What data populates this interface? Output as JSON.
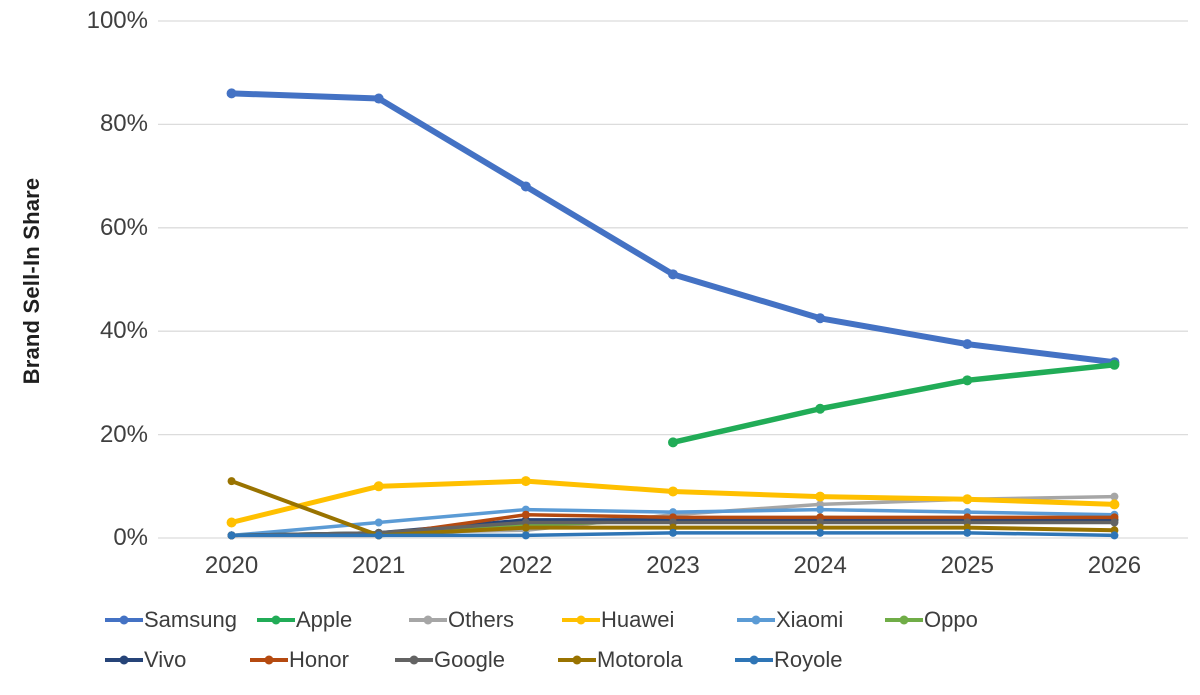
{
  "chart_data": {
    "type": "line",
    "title": "",
    "ylabel": "Brand Sell-In Share",
    "xlabel": "",
    "categories": [
      "2020",
      "2021",
      "2022",
      "2023",
      "2024",
      "2025",
      "2026"
    ],
    "ytick_labels": [
      "100%",
      "80%",
      "60%",
      "40%",
      "20%",
      "0%"
    ],
    "ytick_values": [
      100,
      80,
      60,
      40,
      20,
      0
    ],
    "ylim": [
      0,
      100
    ],
    "grid": "horizontal",
    "legend_position": "bottom",
    "series": [
      {
        "name": "Samsung",
        "color": "#4472C4",
        "line_width": 6,
        "marker": "circle",
        "values": [
          86,
          85,
          68,
          51,
          42.5,
          37.5,
          34
        ]
      },
      {
        "name": "Apple",
        "color": "#21AC57",
        "line_width": 5.5,
        "marker": "circle",
        "values": [
          null,
          null,
          null,
          18.5,
          25,
          30.5,
          33.5
        ]
      },
      {
        "name": "Others",
        "color": "#A6A6A6",
        "line_width": 3.5,
        "marker": "circle",
        "values": [
          0.5,
          1,
          1.5,
          4.5,
          6.5,
          7.5,
          8
        ]
      },
      {
        "name": "Huawei",
        "color": "#FFC000",
        "line_width": 5,
        "marker": "circle",
        "values": [
          3,
          10,
          11,
          9,
          8,
          7.5,
          6.5
        ]
      },
      {
        "name": "Xiaomi",
        "color": "#5B9BD5",
        "line_width": 3.5,
        "marker": "circle",
        "values": [
          0.5,
          3,
          5.5,
          5,
          5.5,
          5,
          4.5
        ]
      },
      {
        "name": "Oppo",
        "color": "#70AD47",
        "line_width": 3.5,
        "marker": "circle",
        "values": [
          0.5,
          1,
          2.5,
          3.5,
          4,
          3.5,
          3.5
        ]
      },
      {
        "name": "Vivo",
        "color": "#264478",
        "line_width": 3.5,
        "marker": "circle",
        "values": [
          0.5,
          1,
          3.5,
          3.5,
          3.5,
          3.5,
          3.5
        ]
      },
      {
        "name": "Honor",
        "color": "#B54A10",
        "line_width": 3.5,
        "marker": "circle",
        "values": [
          0.5,
          0.5,
          4.5,
          4,
          4,
          4,
          4
        ]
      },
      {
        "name": "Google",
        "color": "#636363",
        "line_width": 3.5,
        "marker": "circle",
        "values": [
          0.5,
          1,
          3,
          3,
          3,
          3,
          3
        ]
      },
      {
        "name": "Motorola",
        "color": "#997300",
        "line_width": 4,
        "marker": "circle",
        "values": [
          11,
          0.5,
          2,
          2,
          2,
          2,
          1.5
        ]
      },
      {
        "name": "Royole",
        "color": "#2E75B6",
        "line_width": 3.5,
        "marker": "circle",
        "values": [
          0.5,
          0.5,
          0.5,
          1,
          1,
          1,
          0.5
        ]
      }
    ],
    "legend_rows": [
      [
        "Samsung",
        "Apple",
        "Others",
        "Huawei",
        "Xiaomi",
        "Oppo"
      ],
      [
        "Vivo",
        "Honor",
        "Google",
        "Motorola",
        "Royole"
      ]
    ]
  },
  "colors": {
    "background": "#FFFFFF",
    "gridline": "#DCDCDC",
    "axis_text": "#3F3F3F",
    "axis_title_text": "#1F1F1F"
  }
}
